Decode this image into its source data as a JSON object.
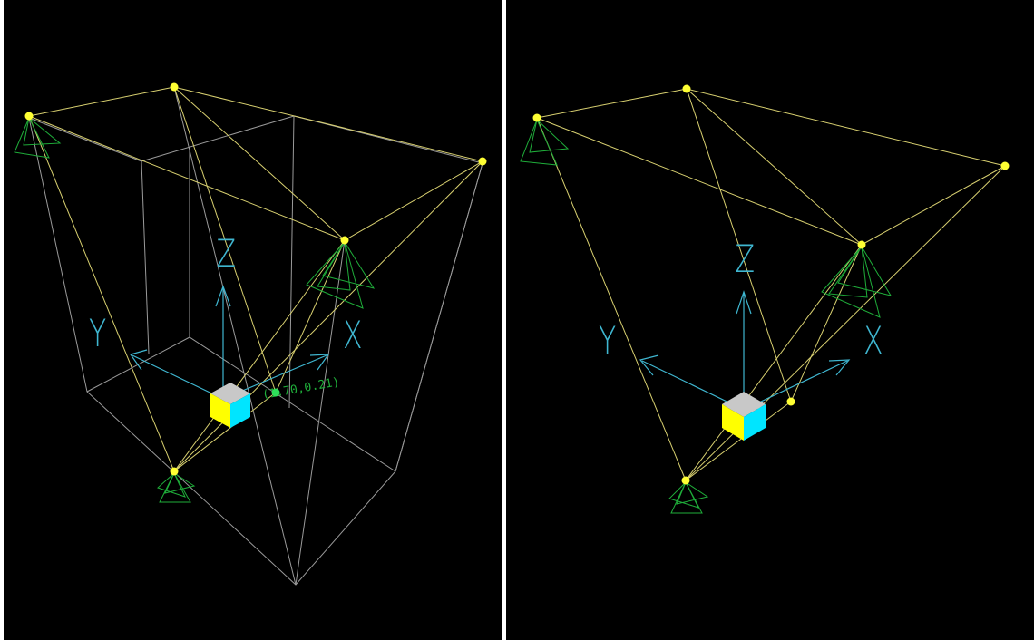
{
  "colors": {
    "background": "#000000",
    "node": "#ffff33",
    "edge": "#d8d070",
    "wireframe": "#9a9a9a",
    "support": "#1fae3a",
    "axis": "#3fb6d0",
    "cube_top": "#c8c8c8",
    "cube_left": "#ffff00",
    "cube_right": "#00e5ff"
  },
  "left_view": {
    "axes": {
      "z_label": "Z",
      "y_label": "Y",
      "x_label": "X"
    },
    "selected_node_label": "(1.70,0.21)"
  },
  "right_view": {
    "axes": {
      "z_label": "Z",
      "y_label": "Y",
      "x_label": "X"
    }
  }
}
